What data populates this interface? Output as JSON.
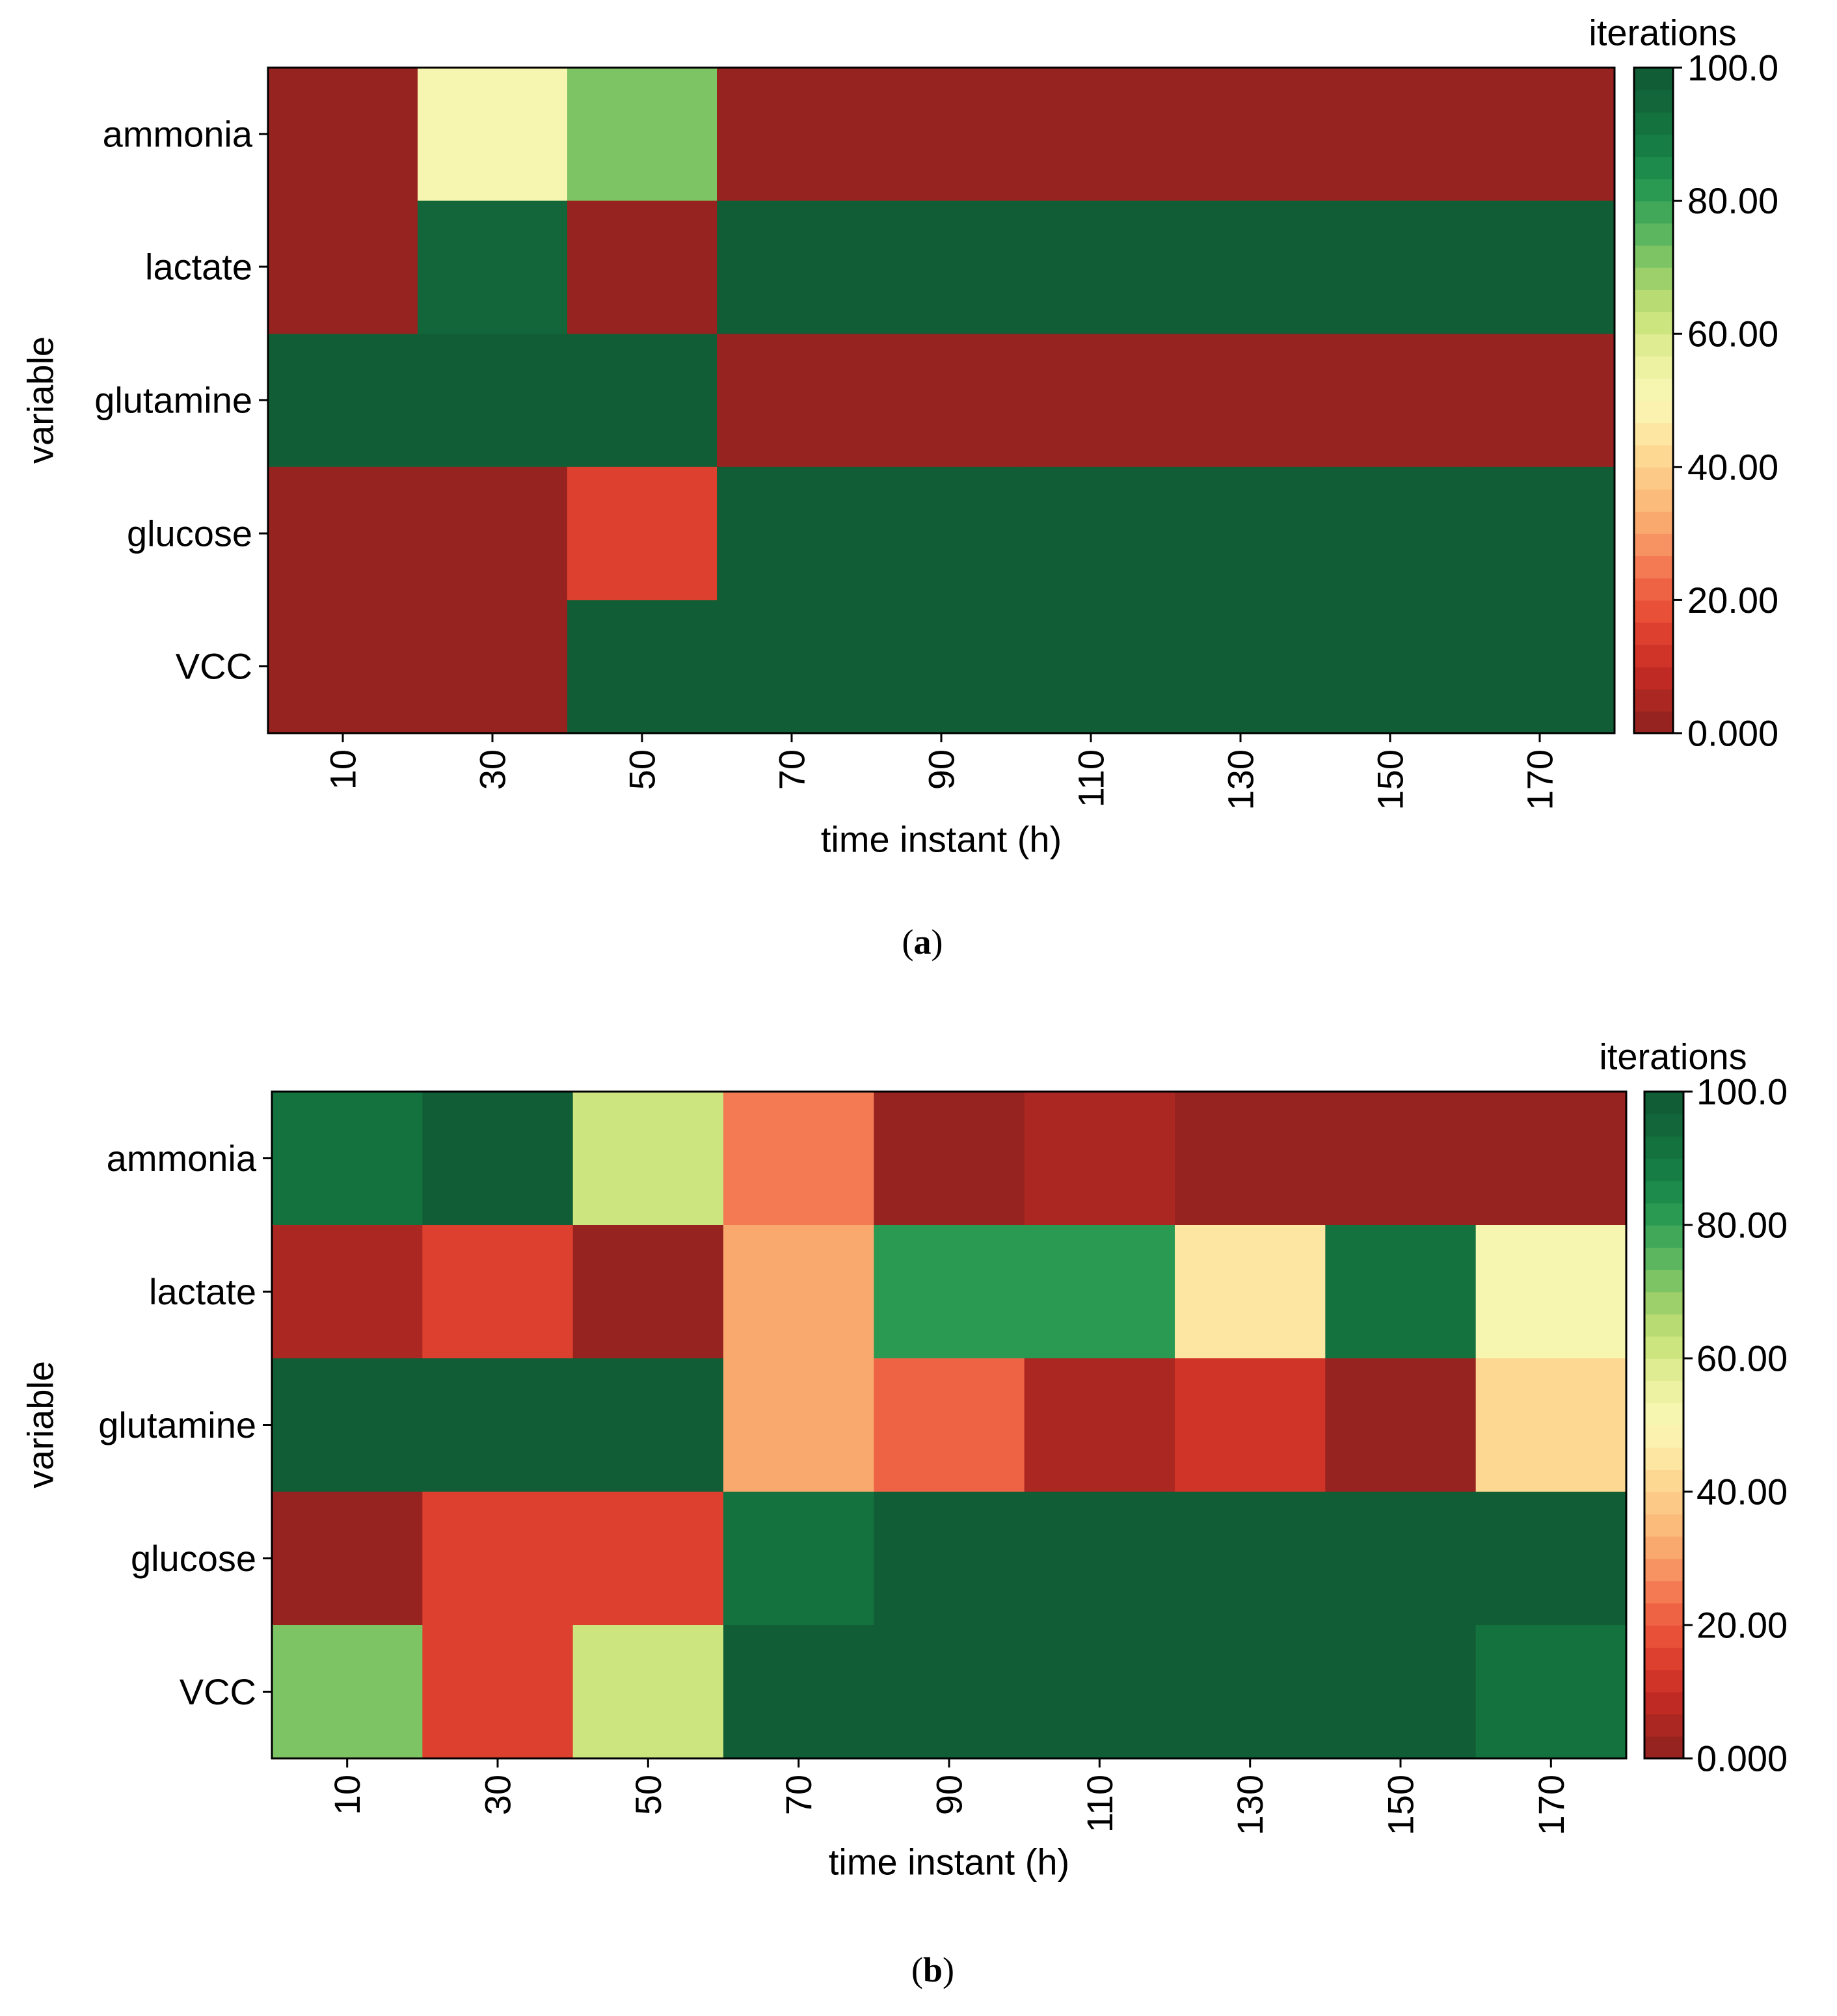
{
  "chart_data": [
    {
      "type": "heatmap",
      "panel": "a",
      "xlabel": "time instant (h)",
      "ylabel": "variable",
      "x_categories": [
        "10",
        "30",
        "50",
        "70",
        "90",
        "110",
        "130",
        "150",
        "170"
      ],
      "y_categories": [
        "ammonia",
        "lactate",
        "glutamine",
        "glucose",
        "VCC"
      ],
      "values": [
        [
          0,
          50,
          70,
          0,
          0,
          0,
          0,
          0,
          0
        ],
        [
          0,
          95,
          0,
          100,
          100,
          100,
          100,
          100,
          100
        ],
        [
          100,
          100,
          100,
          0,
          0,
          0,
          0,
          0,
          0
        ],
        [
          0,
          0,
          15,
          100,
          100,
          100,
          100,
          100,
          100
        ],
        [
          0,
          0,
          100,
          100,
          100,
          100,
          100,
          100,
          100
        ]
      ],
      "colorbar": {
        "title": "iterations",
        "range": [
          0,
          100
        ],
        "tick_values": [
          0,
          20,
          40,
          60,
          80,
          100
        ],
        "tick_labels": [
          "0.000",
          "20.00",
          "40.00",
          "60.00",
          "80.00",
          "100.0"
        ]
      }
    },
    {
      "type": "heatmap",
      "panel": "b",
      "xlabel": "time instant (h)",
      "ylabel": "variable",
      "x_categories": [
        "10",
        "30",
        "50",
        "70",
        "90",
        "110",
        "130",
        "150",
        "170"
      ],
      "y_categories": [
        "ammonia",
        "lactate",
        "glutamine",
        "glucose",
        "VCC"
      ],
      "values": [
        [
          90,
          100,
          60,
          25,
          0,
          5,
          0,
          0,
          0
        ],
        [
          5,
          15,
          0,
          30,
          80,
          80,
          45,
          90,
          50
        ],
        [
          100,
          100,
          100,
          32,
          20,
          5,
          10,
          0,
          42
        ],
        [
          0,
          15,
          15,
          90,
          100,
          100,
          100,
          100,
          100
        ],
        [
          70,
          15,
          60,
          100,
          100,
          100,
          100,
          100,
          90
        ]
      ],
      "colorbar": {
        "title": "iterations",
        "range": [
          0,
          100
        ],
        "tick_values": [
          0,
          20,
          40,
          60,
          80,
          100
        ],
        "tick_labels": [
          "0.000",
          "20.00",
          "40.00",
          "60.00",
          "80.00",
          "100.0"
        ]
      }
    }
  ],
  "panel_labels": [
    {
      "open": "(",
      "letter": "a",
      "close": ")"
    },
    {
      "open": "(",
      "letter": "b",
      "close": ")"
    }
  ],
  "colors": {
    "palette": [
      "#962320",
      "#AB2722",
      "#BF2B24",
      "#D03327",
      "#DD402E",
      "#E85037",
      "#EF6345",
      "#F47A54",
      "#F79262",
      "#F9A96E",
      "#FBBB7B",
      "#FCC987",
      "#FDD893",
      "#FDE6A1",
      "#FCF2AF",
      "#F7F6B0",
      "#EDF2A3",
      "#DFEC92",
      "#CDE57F",
      "#B8DC73",
      "#9DD06A",
      "#7DC465",
      "#5CB65F",
      "#40A858",
      "#2A9A52",
      "#1C8B4B",
      "#167E44",
      "#14723F",
      "#12663A",
      "#115E36"
    ],
    "frame": "#000000",
    "text": "#000000",
    "background": "#ffffff"
  }
}
